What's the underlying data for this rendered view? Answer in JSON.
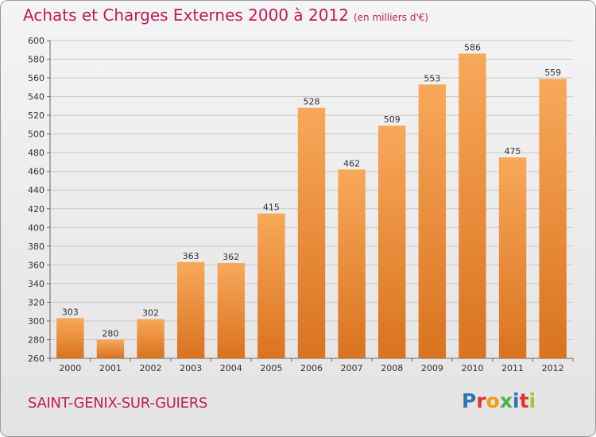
{
  "header": {
    "title": "Achats et Charges Externes 2000 à 2012",
    "subtitle": "(en milliers d'€)"
  },
  "footer": {
    "commune": "SAINT-GENIX-SUR-GUIERS",
    "logo_letters": [
      "P",
      "r",
      "o",
      "x",
      "i",
      "t",
      "i"
    ],
    "logo_colors": [
      "#2e75b6",
      "#e3342f",
      "#f39c12",
      "#4caf50",
      "#2e75b6",
      "#e3342f",
      "#9acd32"
    ]
  },
  "chart_data": {
    "type": "bar",
    "categories": [
      "2000",
      "2001",
      "2002",
      "2003",
      "2004",
      "2005",
      "2006",
      "2007",
      "2008",
      "2009",
      "2010",
      "2011",
      "2012"
    ],
    "values": [
      303,
      280,
      302,
      363,
      362,
      415,
      528,
      462,
      509,
      553,
      586,
      475,
      559
    ],
    "ylim": [
      260,
      600
    ],
    "yticks": [
      260,
      280,
      300,
      320,
      340,
      360,
      380,
      400,
      420,
      440,
      460,
      480,
      500,
      520,
      540,
      560,
      580,
      600
    ],
    "grid": true,
    "bar_color": "#f0923a"
  }
}
